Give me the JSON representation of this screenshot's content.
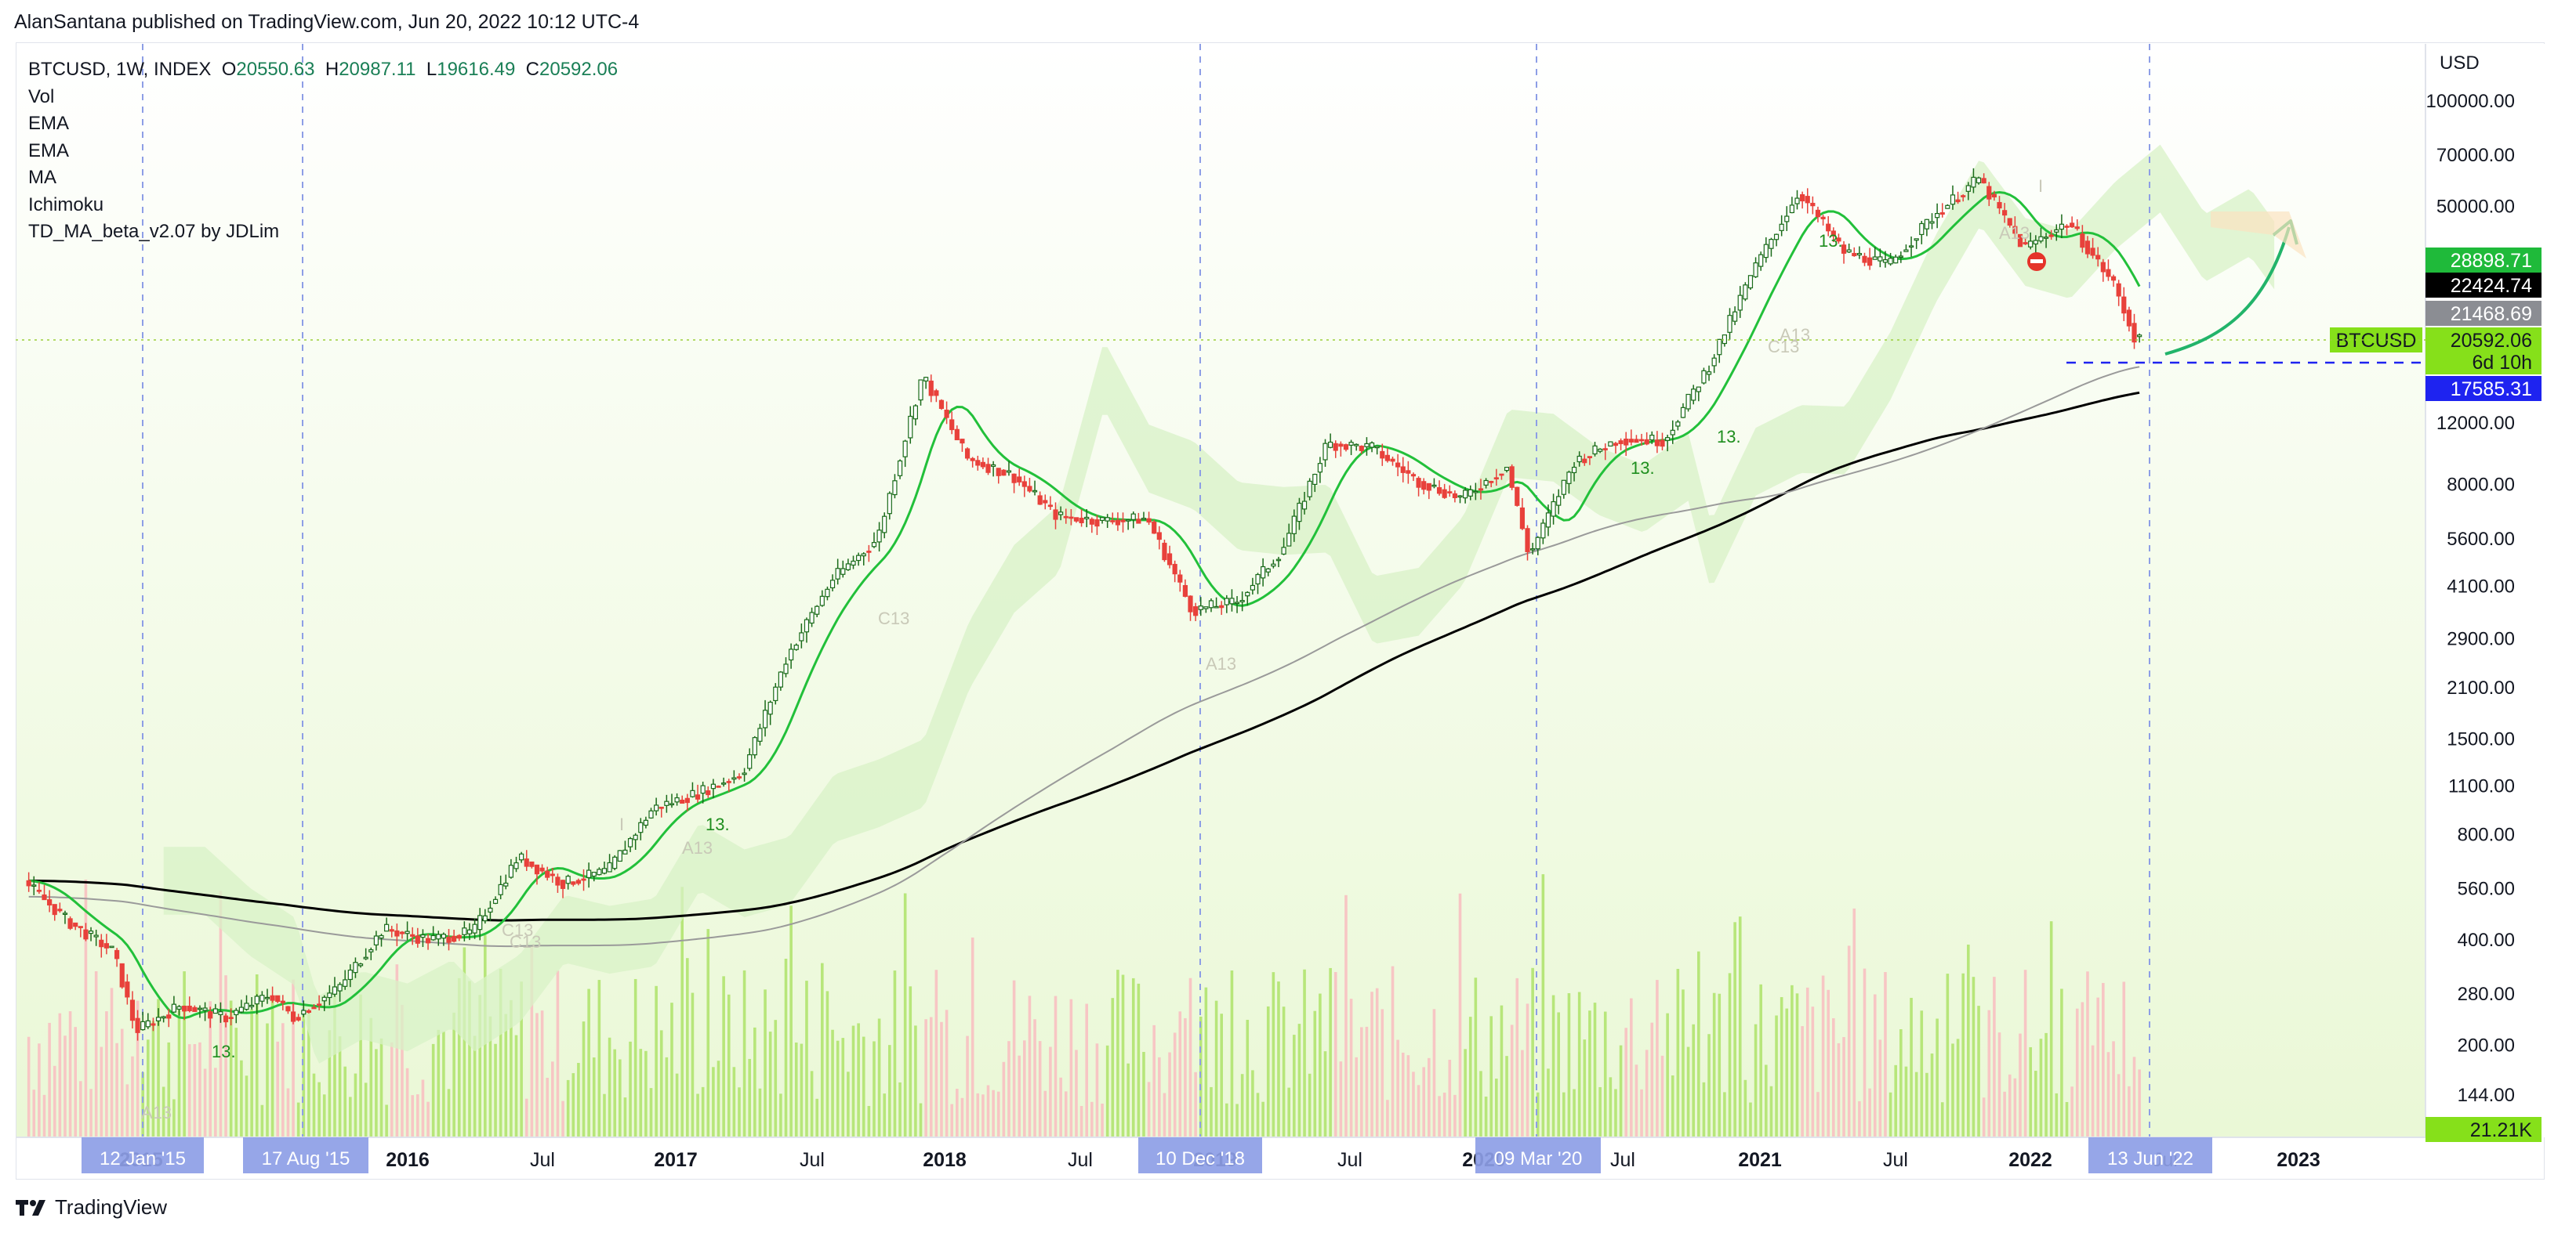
{
  "header": {
    "published_text": "AlanSantana published on TradingView.com, Jun 20, 2022 10:12 UTC-4"
  },
  "legend": {
    "symbol": "BTCUSD, 1W, INDEX",
    "ohlc": [
      {
        "label": "O",
        "value": "20550.63"
      },
      {
        "label": "H",
        "value": "20987.11"
      },
      {
        "label": "L",
        "value": "19616.49"
      },
      {
        "label": "C",
        "value": "20592.06"
      }
    ],
    "indicators": [
      "Vol",
      "EMA",
      "EMA",
      "MA",
      "Ichimoku",
      "TD_MA_beta_v2.07 by JDLim"
    ]
  },
  "axis": {
    "currency": "USD",
    "price_ticks": [
      "100000.00",
      "70000.00",
      "50000.00",
      "12000.00",
      "8000.00",
      "5600.00",
      "4100.00",
      "2900.00",
      "2100.00",
      "1500.00",
      "1100.00",
      "800.00",
      "560.00",
      "400.00",
      "280.00",
      "200.00",
      "144.00"
    ],
    "time_ticks": [
      "2015",
      "2016",
      "Jul",
      "2017",
      "Jul",
      "2018",
      "Jul",
      "2019",
      "Jul",
      "2020",
      "Jul",
      "2021",
      "Jul",
      "2022",
      "Jul",
      "2023"
    ]
  },
  "price_tags": [
    {
      "text": "28898.71",
      "bg": "#1fba3a",
      "fg": "#ffffff"
    },
    {
      "text": "22424.74",
      "bg": "#000000",
      "fg": "#ffffff"
    },
    {
      "text": "21468.69",
      "bg": "#8b8d93",
      "fg": "#ffffff"
    },
    {
      "text": "20592.06",
      "bg": "#86e01a",
      "fg": "#131722"
    },
    {
      "text": "6d 10h",
      "bg": "#86e01a",
      "fg": "#131722"
    },
    {
      "text": "17585.31",
      "bg": "#1e23f0",
      "fg": "#ffffff"
    },
    {
      "text": "21.21K",
      "bg": "#86e01a",
      "fg": "#131722"
    }
  ],
  "symbol_tag": "BTCUSD",
  "date_tags": [
    "12 Jan '15",
    "17 Aug '15",
    "10 Dec '18",
    "09 Mar '20",
    "13 Jun '22"
  ],
  "annotations": [
    "13.",
    "A13",
    "C13",
    "13.",
    "A13",
    "C13",
    "I",
    "A13",
    "A13",
    "13.",
    "C13",
    "13.",
    "A13",
    "13.",
    "C13",
    "I"
  ],
  "footer": {
    "brand": "TradingView"
  },
  "colors": {
    "up": "#1a6b1a",
    "down": "#e8413b",
    "ema": "#22c03a",
    "ma": "#000000",
    "ema_slow": "#9a9a9a",
    "cloud_green": "#d8f2c7",
    "cloud_orange": "#fbe3c0",
    "vol_up": "#b7e67a",
    "vol_down": "#f7c6c4",
    "guide": "#8d9ee6"
  },
  "chart_data": {
    "type": "line",
    "title": "BTCUSD, 1W, INDEX",
    "ylabel": "USD",
    "log_scale": true,
    "ylim": [
      120,
      130000
    ],
    "x_range": [
      "2014-08",
      "2023-03"
    ],
    "series": [
      {
        "name": "BTCUSD",
        "x": [
          "2014-08",
          "2014-10",
          "2014-12",
          "2015-01",
          "2015-03",
          "2015-05",
          "2015-07",
          "2015-08",
          "2015-10",
          "2015-12",
          "2016-02",
          "2016-04",
          "2016-06",
          "2016-08",
          "2016-10",
          "2016-12",
          "2017-02",
          "2017-04",
          "2017-06",
          "2017-08",
          "2017-10",
          "2017-12",
          "2018-02",
          "2018-04",
          "2018-06",
          "2018-08",
          "2018-10",
          "2018-12",
          "2019-02",
          "2019-04",
          "2019-06",
          "2019-08",
          "2019-10",
          "2019-12",
          "2020-02",
          "2020-03",
          "2020-05",
          "2020-07",
          "2020-09",
          "2020-11",
          "2021-01",
          "2021-03",
          "2021-05",
          "2021-07",
          "2021-09",
          "2021-11",
          "2022-01",
          "2022-03",
          "2022-05",
          "2022-06"
        ],
        "values": [
          590,
          450,
          370,
          220,
          260,
          240,
          280,
          240,
          290,
          430,
          400,
          420,
          690,
          580,
          630,
          950,
          1050,
          1200,
          2600,
          4300,
          5600,
          16500,
          9500,
          8500,
          6500,
          6300,
          6400,
          3500,
          3700,
          5200,
          10500,
          10200,
          8200,
          7300,
          9000,
          5000,
          9300,
          10800,
          10700,
          17500,
          33000,
          55000,
          37000,
          34000,
          47000,
          60000,
          38000,
          45000,
          30000,
          20592
        ]
      }
    ]
  }
}
